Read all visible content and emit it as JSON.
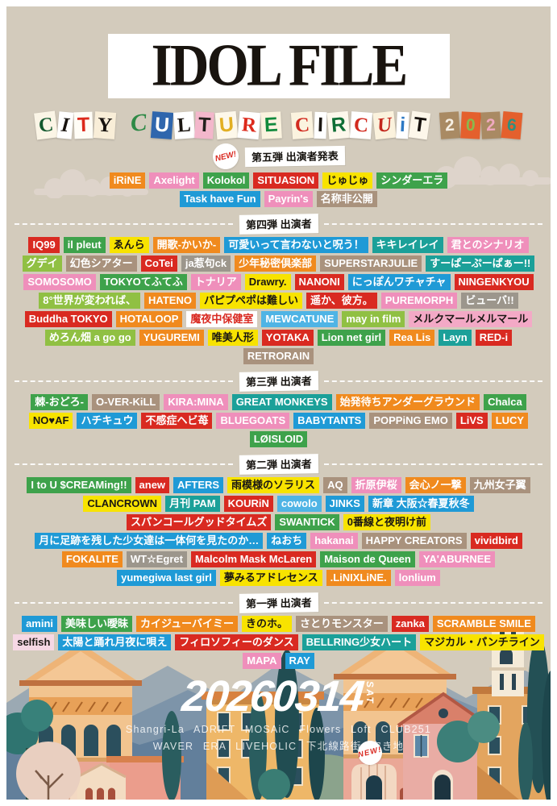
{
  "poster": {
    "title": "IDOL FILE",
    "new_badge": "NEW!",
    "subtitle": {
      "text": "CITY CULTURE CIRCUIT 2026",
      "letters": [
        {
          "ch": "C",
          "fg": "#14592f",
          "bg": "#fbf5e6",
          "rot": -7,
          "sf": 1
        },
        {
          "ch": "I",
          "fg": "#17120e",
          "bg": "#ffffff",
          "rot": 5,
          "sc": 1
        },
        {
          "ch": "T",
          "fg": "#dc2a1c",
          "bg": "#fffdf6",
          "rot": -2
        },
        {
          "ch": "Y",
          "fg": "#17120e",
          "bg": "#f9eed8",
          "rot": 4,
          "sf": 1
        },
        {
          "ch": " "
        },
        {
          "ch": "C",
          "fg": "#2e8a46",
          "rot": -6,
          "sc": 1,
          "nobg": 1
        },
        {
          "ch": "U",
          "fg": "#ffffff",
          "bg": "#2f66ad",
          "rot": 4
        },
        {
          "ch": "L",
          "fg": "#1b1611",
          "bg": "#ffffff",
          "rot": -4,
          "sf": 1
        },
        {
          "ch": "T",
          "fg": "#23201c",
          "bg": "#f3b7cb",
          "rot": 3
        },
        {
          "ch": "U",
          "fg": "#e2af22",
          "bg": "#fdf8ea",
          "rot": -5
        },
        {
          "ch": "R",
          "fg": "#dc2a1c",
          "bg": "#ffffff",
          "rot": 5,
          "sf": 1
        },
        {
          "ch": "E",
          "fg": "#118a3c",
          "bg": "#fbf3df",
          "rot": -3
        },
        {
          "ch": " "
        },
        {
          "ch": "C",
          "fg": "#d22b20",
          "bg": "#fbf3df",
          "rot": -4,
          "sf": 1
        },
        {
          "ch": "I",
          "fg": "#1b1611",
          "bg": "#ffffff",
          "rot": 2
        },
        {
          "ch": "R",
          "fg": "#0f6e35",
          "bg": "#fdf8ec",
          "rot": -5
        },
        {
          "ch": "C",
          "fg": "#d22b20",
          "bg": "#ffffff",
          "rot": 4,
          "sf": 1
        },
        {
          "ch": "U",
          "fg": "#c3271c",
          "bg": "#fbf2dd",
          "rot": -6,
          "sc": 1
        },
        {
          "ch": "i",
          "fg": "#2d79c4",
          "bg": "#ffffff",
          "rot": 3
        },
        {
          "ch": "T",
          "fg": "#17120e",
          "bg": "#fdf7ea",
          "rot": 8
        },
        {
          "ch": " "
        },
        {
          "ch": "2",
          "fg": "#f6efe3",
          "bg": "#a98a63",
          "rot": -4,
          "tile": 1
        },
        {
          "ch": "0",
          "fg": "#8bb84d",
          "bg": "#e4602d",
          "rot": 3,
          "tile": 1
        },
        {
          "ch": "2",
          "fg": "#f0a9bf",
          "bg": "#a98a63",
          "rot": -3,
          "tile": 1
        },
        {
          "ch": "6",
          "fg": "#2f8f7f",
          "bg": "#e4602d",
          "rot": 5,
          "tile": 1
        }
      ]
    },
    "palette": {
      "orange": {
        "bg": "#f08a1e",
        "fg": "#ffffff"
      },
      "pink": {
        "bg": "#ef8fbb",
        "fg": "#ffffff"
      },
      "green": {
        "bg": "#3ea24b",
        "fg": "#ffffff"
      },
      "red": {
        "bg": "#d92a21",
        "fg": "#ffffff"
      },
      "yellow": {
        "bg": "#f8e300",
        "fg": "#1a1713"
      },
      "teal": {
        "bg": "#1ba099",
        "fg": "#ffffff"
      },
      "blue": {
        "bg": "#1f9ad6",
        "fg": "#ffffff"
      },
      "lightblue": {
        "bg": "#4fb4e5",
        "fg": "#ffffff"
      },
      "taupe": {
        "bg": "#a9927d",
        "fg": "#ffffff"
      },
      "gray": {
        "bg": "#9c968c",
        "fg": "#ffffff"
      },
      "yellowgreen": {
        "bg": "#90c043",
        "fg": "#ffffff"
      },
      "whitered": {
        "bg": "#ffffff",
        "fg": "#d92a21"
      },
      "pinkblack": {
        "bg": "#f3a9c6",
        "fg": "#1a1713"
      },
      "lightpink": {
        "bg": "#f6d8e4",
        "fg": "#1a1713"
      }
    },
    "sections": [
      {
        "id": "s5",
        "heading": "第五弾 出演者発表",
        "badge": "NEW!",
        "artists": [
          {
            "n": "iRiNE",
            "c": "orange"
          },
          {
            "n": "Axelight",
            "c": "pink"
          },
          {
            "n": "Kolokol",
            "c": "green"
          },
          {
            "n": "SITUASION",
            "c": "red"
          },
          {
            "n": "じゅじゅ",
            "c": "yellow"
          },
          {
            "n": "シンダーエラ",
            "c": "green"
          },
          {
            "n": "Task have Fun",
            "c": "blue"
          },
          {
            "n": "Payrin's",
            "c": "pink"
          },
          {
            "n": "名称非公開",
            "c": "taupe"
          }
        ]
      },
      {
        "id": "s4",
        "heading": "第四弾 出演者",
        "artists": [
          {
            "n": "IQ99",
            "c": "red"
          },
          {
            "n": "il pleut",
            "c": "green"
          },
          {
            "n": "ゑんら",
            "c": "yellow"
          },
          {
            "n": "開歌-かいか-",
            "c": "orange"
          },
          {
            "n": "可愛いって言わないと呪う！",
            "c": "blue"
          },
          {
            "n": "キキレイレイ",
            "c": "teal"
          },
          {
            "n": "君とのシナリオ",
            "c": "pink"
          },
          {
            "n": "グデイ",
            "c": "yellowgreen"
          },
          {
            "n": "幻色シアター",
            "c": "taupe"
          },
          {
            "n": "CoTei",
            "c": "red"
          },
          {
            "n": "ja惹句ck",
            "c": "gray"
          },
          {
            "n": "少年秘密倶楽部",
            "c": "orange"
          },
          {
            "n": "SUPERSTARJULIE",
            "c": "taupe"
          },
          {
            "n": "すーぱーぷーぱぁー!!",
            "c": "teal"
          },
          {
            "n": "SOMOSOMO",
            "c": "pink"
          },
          {
            "n": "TOKYOてふてふ",
            "c": "green"
          },
          {
            "n": "トナリア",
            "c": "pink"
          },
          {
            "n": "Drawry.",
            "c": "yellow"
          },
          {
            "n": "NANONI",
            "c": "red"
          },
          {
            "n": "にっぽんワチャチャ",
            "c": "blue"
          },
          {
            "n": "NINGENKYOU",
            "c": "red"
          },
          {
            "n": "8°世界が変われば、",
            "c": "yellowgreen"
          },
          {
            "n": "HATENO",
            "c": "orange"
          },
          {
            "n": "パピプペポは難しい",
            "c": "yellow"
          },
          {
            "n": "遥か、彼方。",
            "c": "red"
          },
          {
            "n": "PUREMORPH",
            "c": "pink"
          },
          {
            "n": "ビューバ!!",
            "c": "gray"
          },
          {
            "n": "Buddha TOKYO",
            "c": "red"
          },
          {
            "n": "HOTALOOP",
            "c": "orange"
          },
          {
            "n": "魔夜中保健室",
            "c": "whitered"
          },
          {
            "n": "MEWCATUNE",
            "c": "lightblue"
          },
          {
            "n": "may in film",
            "c": "yellowgreen"
          },
          {
            "n": "メルクマールメルマール",
            "c": "pinkblack"
          },
          {
            "n": "めろん畑 a go go",
            "c": "yellowgreen"
          },
          {
            "n": "YUGUREMI",
            "c": "orange"
          },
          {
            "n": "唯美人形",
            "c": "yellow"
          },
          {
            "n": "YOTAKA",
            "c": "red"
          },
          {
            "n": "Lion net girl",
            "c": "green"
          },
          {
            "n": "Rea Lis",
            "c": "orange"
          },
          {
            "n": "Layn",
            "c": "teal"
          },
          {
            "n": "RED-i",
            "c": "red"
          },
          {
            "n": "RETRORAIN",
            "c": "taupe"
          }
        ]
      },
      {
        "id": "s3",
        "heading": "第三弾 出演者",
        "artists": [
          {
            "n": "棘-おどろ-",
            "c": "green"
          },
          {
            "n": "O-VER-KiLL",
            "c": "taupe"
          },
          {
            "n": "KIRA:MINA",
            "c": "pink"
          },
          {
            "n": "GREAT MONKEYS",
            "c": "teal"
          },
          {
            "n": "始発待ちアンダーグラウンド",
            "c": "orange"
          },
          {
            "n": "Chalca",
            "c": "green"
          },
          {
            "n": "NO♥AF",
            "c": "yellow"
          },
          {
            "n": "ハチキュウ",
            "c": "blue"
          },
          {
            "n": "不感症ヘビ苺",
            "c": "red"
          },
          {
            "n": "BLUEGOATS",
            "c": "pink"
          },
          {
            "n": "BABYTANTS",
            "c": "blue"
          },
          {
            "n": "POPPiNG EMO",
            "c": "taupe"
          },
          {
            "n": "LiVS",
            "c": "red"
          },
          {
            "n": "LUCY",
            "c": "orange"
          },
          {
            "n": "LØISLOID",
            "c": "green"
          }
        ]
      },
      {
        "id": "s2",
        "heading": "第二弾 出演者",
        "artists": [
          {
            "n": "I to U $CREAMing!!",
            "c": "green"
          },
          {
            "n": "anew",
            "c": "red"
          },
          {
            "n": "AFTERS",
            "c": "blue"
          },
          {
            "n": "雨模様のソラリス",
            "c": "yellow"
          },
          {
            "n": "AQ",
            "c": "taupe"
          },
          {
            "n": "折原伊桜",
            "c": "pink"
          },
          {
            "n": "会心ノ一撃",
            "c": "orange"
          },
          {
            "n": "九州女子翼",
            "c": "taupe"
          },
          {
            "n": "CLANCROWN",
            "c": "yellow"
          },
          {
            "n": "月刊 PAM",
            "c": "teal"
          },
          {
            "n": "KOURiN",
            "c": "red"
          },
          {
            "n": "cowolo",
            "c": "lightblue"
          },
          {
            "n": "JINKS",
            "c": "blue"
          },
          {
            "n": "新章 大阪☆春夏秋冬",
            "c": "blue"
          },
          {
            "n": "スパンコールグッドタイムズ",
            "c": "red"
          },
          {
            "n": "SWANTICK",
            "c": "green"
          },
          {
            "n": "0番線と夜明け前",
            "c": "yellow"
          },
          {
            "n": "月に足跡を残した少女達は一体何を見たのか…",
            "c": "blue"
          },
          {
            "n": "ねおち",
            "c": "blue"
          },
          {
            "n": "hakanai",
            "c": "pink"
          },
          {
            "n": "HAPPY CREATORS",
            "c": "taupe"
          },
          {
            "n": "vividbird",
            "c": "red"
          },
          {
            "n": "FOKALITE",
            "c": "orange"
          },
          {
            "n": "WT☆Egret",
            "c": "gray"
          },
          {
            "n": "Malcolm Mask McLaren",
            "c": "red"
          },
          {
            "n": "Maison de Queen",
            "c": "green"
          },
          {
            "n": "YA'ABURNEE",
            "c": "pink"
          },
          {
            "n": "yumegiwa last girl",
            "c": "blue"
          },
          {
            "n": "夢みるアドレセンス",
            "c": "yellow"
          },
          {
            "n": ".LiNIXLiNE.",
            "c": "orange"
          },
          {
            "n": "lonlium",
            "c": "pink"
          }
        ]
      },
      {
        "id": "s1",
        "heading": "第一弾 出演者",
        "artists": [
          {
            "n": "amini",
            "c": "blue"
          },
          {
            "n": "美味しい曖昧",
            "c": "green"
          },
          {
            "n": "カイジューバイミー",
            "c": "orange"
          },
          {
            "n": "きのホ。",
            "c": "yellow"
          },
          {
            "n": "さとりモンスター",
            "c": "taupe"
          },
          {
            "n": "zanka",
            "c": "red"
          },
          {
            "n": "SCRAMBLE SMILE",
            "c": "orange"
          },
          {
            "n": "selfish",
            "c": "lightpink"
          },
          {
            "n": "太陽と踊れ月夜に唄え",
            "c": "blue"
          },
          {
            "n": "フィロソフィーのダンス",
            "c": "red"
          },
          {
            "n": "BELLRING少女ハート",
            "c": "teal"
          },
          {
            "n": "マジカル・パンチライン",
            "c": "yellow"
          },
          {
            "n": "MAPA",
            "c": "pink"
          },
          {
            "n": "RAY",
            "c": "blue"
          }
        ]
      }
    ],
    "date": {
      "digits": "20260314",
      "day": "SAT"
    },
    "venues": [
      "Shangri-La ADRIFT MOSAiC Flowers Loft CLUB251",
      "WAVER ERA LIVEHOLIC 下北線路街 空き地"
    ]
  }
}
